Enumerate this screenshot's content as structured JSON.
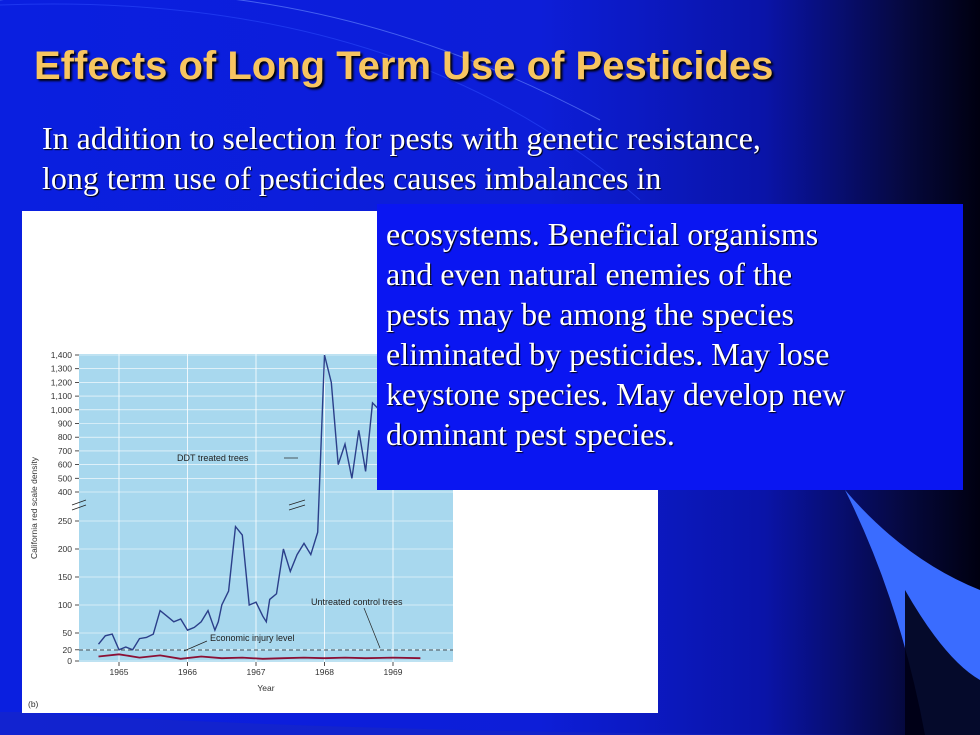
{
  "slide": {
    "title": "Effects of Long Term Use of Pesticides",
    "intro_lines": [
      "In addition to selection for pests with genetic resistance,",
      "long term use of pesticides causes imbalances in"
    ],
    "callout_lines": [
      "ecosystems.  Beneficial organisms",
      "and even natural enemies of the",
      "pests may be among the species",
      "eliminated by pesticides.  May lose",
      "keystone species.  May develop new",
      "dominant pest species."
    ],
    "colors": {
      "title": "#f7c560",
      "background": "#0a1fe0",
      "callout_bg": "#0a16f2",
      "plot_bg": "#a8d8ee",
      "series_ddt": "#2b3f8a",
      "series_untreated": "#8b1035"
    }
  },
  "chart_data": {
    "type": "line",
    "panel_label": "(b)",
    "xlabel": "Year",
    "ylabel": "California red scale density",
    "x_ticks": [
      "1965",
      "1966",
      "1967",
      "1968",
      "1969"
    ],
    "y_ticks_lower": [
      "0",
      "20",
      "50",
      "100",
      "150",
      "200",
      "250"
    ],
    "y_ticks_upper": [
      "400",
      "500",
      "600",
      "700",
      "800",
      "900",
      "1,000",
      "1,100",
      "1,200",
      "1,300",
      "1,400"
    ],
    "annotations": {
      "ddt": "DDT treated trees",
      "untreated": "Untreated control trees",
      "injury": "Economic injury level"
    },
    "economic_injury_level": 20,
    "series": [
      {
        "name": "DDT treated trees",
        "x": [
          1964.7,
          1964.8,
          1964.9,
          1965.0,
          1965.1,
          1965.2,
          1965.3,
          1965.4,
          1965.5,
          1965.6,
          1965.7,
          1965.8,
          1965.9,
          1966.0,
          1966.1,
          1966.2,
          1966.3,
          1966.4,
          1966.45,
          1966.5,
          1966.6,
          1966.7,
          1966.8,
          1966.9,
          1967.0,
          1967.1,
          1967.15,
          1967.2,
          1967.3,
          1967.4,
          1967.5,
          1967.6,
          1967.7,
          1967.8,
          1967.9,
          1968.0,
          1968.1,
          1968.2,
          1968.3,
          1968.4,
          1968.5,
          1968.6,
          1968.7,
          1968.8
        ],
        "y": [
          30,
          45,
          48,
          20,
          25,
          20,
          40,
          42,
          48,
          90,
          80,
          70,
          75,
          55,
          60,
          70,
          90,
          55,
          70,
          100,
          125,
          240,
          225,
          100,
          105,
          80,
          70,
          110,
          120,
          200,
          160,
          190,
          210,
          190,
          230,
          1400,
          1200,
          600,
          750,
          500,
          850,
          550,
          1050,
          1000
        ]
      },
      {
        "name": "Untreated control trees",
        "x": [
          1964.7,
          1965.0,
          1965.3,
          1965.6,
          1965.9,
          1966.2,
          1966.5,
          1966.8,
          1967.1,
          1967.4,
          1967.7,
          1968.0,
          1968.3,
          1968.6,
          1969.0,
          1969.4
        ],
        "y": [
          8,
          12,
          6,
          10,
          4,
          8,
          5,
          6,
          4,
          5,
          6,
          5,
          6,
          5,
          6,
          5
        ]
      }
    ]
  }
}
